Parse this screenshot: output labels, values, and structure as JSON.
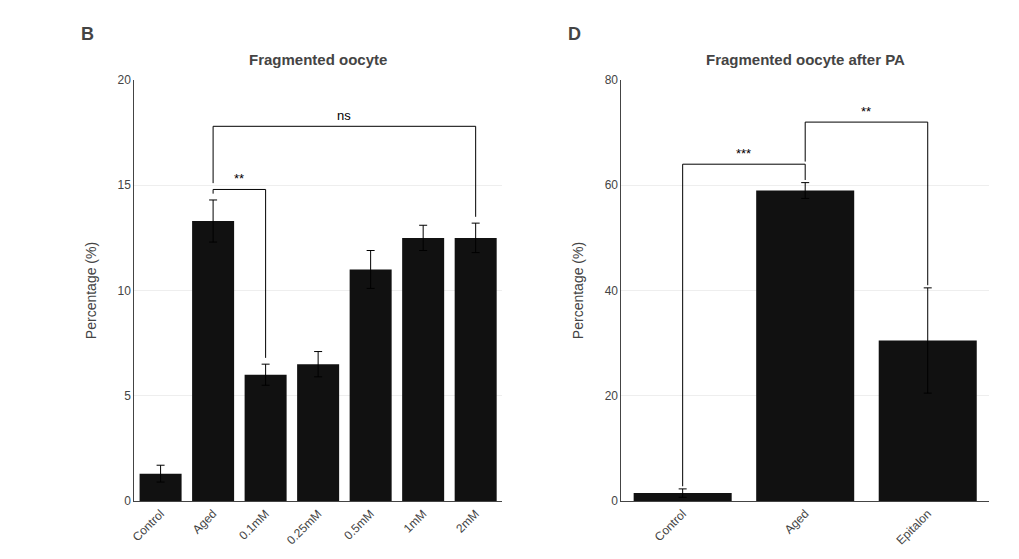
{
  "chart_data": [
    {
      "type": "bar",
      "title": "Fragmented oocyte",
      "categories": [
        "Control",
        "Aged",
        "0.1mM",
        "0.25mM",
        "0.5mM",
        "1mM",
        "2mM"
      ],
      "values": [
        1.3,
        13.3,
        6.0,
        6.5,
        11.0,
        12.5,
        12.5
      ],
      "errors": [
        0.4,
        1.0,
        0.5,
        0.6,
        0.9,
        0.6,
        0.7
      ],
      "color": "#111111",
      "ylabel": "Percentage (%)",
      "ylim": [
        0,
        20
      ],
      "yticks": [
        0,
        5,
        10,
        15,
        20
      ],
      "annotations": [
        {
          "text": "B"
        },
        {
          "text": "**",
          "from": "Aged",
          "to": "0.1mM",
          "y": 14.8,
          "y_from": 14.6,
          "y_to": 6.8
        },
        {
          "text": "ns",
          "from": "Aged",
          "to": "2mM",
          "y": 17.8,
          "y_from": 15.1,
          "y_to": 13.5
        }
      ]
    },
    {
      "type": "bar",
      "title": "Fragmented oocyte after PA",
      "categories": [
        "Control",
        "Aged",
        "Epitalon"
      ],
      "values": [
        1.5,
        59.0,
        30.5
      ],
      "errors": [
        0.8,
        1.5,
        10.0
      ],
      "color": "#111111",
      "ylabel": "Percentage (%)",
      "ylim": [
        0,
        80
      ],
      "yticks": [
        0,
        20,
        40,
        60,
        80
      ],
      "annotations": [
        {
          "text": "D"
        },
        {
          "text": "***",
          "from": "Control",
          "to": "Aged",
          "y": 64.0,
          "y_from": 2.8,
          "y_to": 61.0
        },
        {
          "text": "**",
          "from": "Aged",
          "to": "Epitalon",
          "y": 72.0,
          "y_from": 64.5,
          "y_to": 41.0
        }
      ]
    }
  ]
}
